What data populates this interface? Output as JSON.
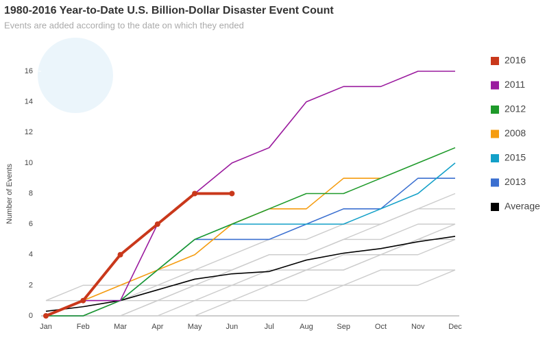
{
  "chart_data": {
    "type": "line",
    "title": "1980-2016 Year-to-Date U.S. Billion-Dollar Disaster Event Count",
    "subtitle": "Events are added according to the date on which they ended",
    "y_label": "Number of Events",
    "categories": [
      "Jan",
      "Feb",
      "Mar",
      "Apr",
      "May",
      "Jun",
      "Jul",
      "Aug",
      "Sep",
      "Oct",
      "Nov",
      "Dec"
    ],
    "ylim": [
      0,
      16
    ],
    "yticks": [
      0,
      2,
      4,
      6,
      8,
      10,
      12,
      14,
      16
    ],
    "legend": "right",
    "series": [
      {
        "name": "2016",
        "color": "#c9381b",
        "marker": true,
        "values": [
          0,
          1,
          4,
          6,
          8,
          8,
          null,
          null,
          null,
          null,
          null,
          null
        ]
      },
      {
        "name": "2011",
        "color": "#9a1a9e",
        "values": [
          0,
          1,
          1,
          6,
          8,
          10,
          11,
          14,
          15,
          15,
          16,
          16
        ]
      },
      {
        "name": "2012",
        "color": "#1e9a2a",
        "values": [
          0,
          0,
          1,
          3,
          5,
          6,
          7,
          8,
          8,
          9,
          10,
          11
        ]
      },
      {
        "name": "2008",
        "color": "#f59c0f",
        "values": [
          0,
          1,
          2,
          3,
          4,
          6,
          7,
          7,
          9,
          9,
          null,
          null
        ]
      },
      {
        "name": "2015",
        "color": "#13a0c8",
        "values": [
          0,
          1,
          1,
          3,
          5,
          6,
          6,
          6,
          6,
          7,
          8,
          10
        ]
      },
      {
        "name": "2013",
        "color": "#3a6fd0",
        "values": [
          0,
          0,
          1,
          3,
          5,
          5,
          5,
          6,
          7,
          7,
          9,
          9
        ]
      },
      {
        "name": "Average",
        "color": "#000000",
        "values": [
          0.3,
          0.6,
          1.0,
          1.7,
          2.4,
          2.75,
          2.9,
          3.65,
          4.1,
          4.4,
          4.85,
          5.2
        ]
      },
      {
        "color": "#cccccc",
        "values": [
          0,
          1,
          1,
          2,
          2,
          2,
          3,
          3,
          3,
          4,
          4,
          5
        ]
      },
      {
        "color": "#cccccc",
        "values": [
          0,
          0,
          0,
          1,
          1,
          2,
          2,
          3,
          4,
          4,
          5,
          5
        ]
      },
      {
        "color": "#cccccc",
        "values": [
          1,
          1,
          2,
          2,
          3,
          3,
          4,
          4,
          5,
          5,
          6,
          6
        ]
      },
      {
        "color": "#cccccc",
        "values": [
          0,
          0,
          1,
          1,
          2,
          2,
          2,
          3,
          3,
          4,
          5,
          6
        ]
      },
      {
        "color": "#cccccc",
        "values": [
          0,
          0,
          0,
          0,
          1,
          1,
          2,
          2,
          2,
          3,
          3,
          3
        ]
      },
      {
        "color": "#cccccc",
        "values": [
          1,
          2,
          2,
          3,
          3,
          4,
          5,
          5,
          6,
          6,
          7,
          7
        ]
      },
      {
        "color": "#cccccc",
        "values": [
          0,
          0,
          0,
          1,
          2,
          3,
          4,
          4,
          5,
          6,
          7,
          8
        ]
      },
      {
        "color": "#cccccc",
        "values": [
          0,
          0,
          0,
          0,
          0,
          1,
          1,
          1,
          2,
          2,
          2,
          3
        ]
      }
    ]
  }
}
